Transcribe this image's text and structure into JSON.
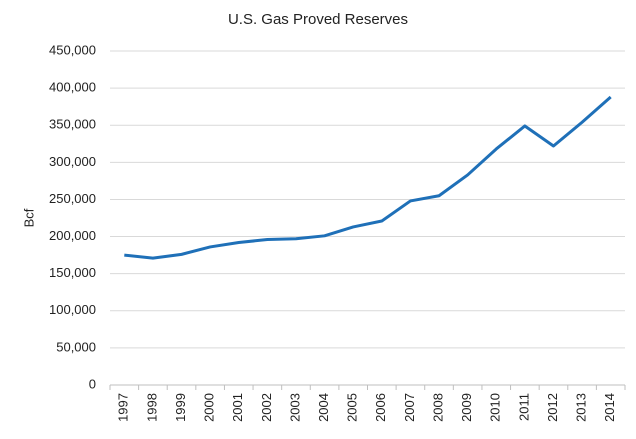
{
  "chart_data": {
    "type": "line",
    "title": "U.S. Gas Proved Reserves",
    "ylabel": "Bcf",
    "categories": [
      "1997",
      "1998",
      "1999",
      "2000",
      "2001",
      "2002",
      "2003",
      "2004",
      "2005",
      "2006",
      "2007",
      "2008",
      "2009",
      "2010",
      "2011",
      "2012",
      "2013",
      "2014"
    ],
    "series": [
      {
        "name": "U.S. Gas Proved Reserves",
        "color": "#1f70b8",
        "values": [
          175000,
          171000,
          176000,
          186000,
          192000,
          196000,
          197000,
          201000,
          213000,
          221000,
          248000,
          255000,
          283000,
          318000,
          349000,
          322000,
          354000,
          388000
        ]
      }
    ],
    "ylim": [
      0,
      450000
    ],
    "yticks": [
      0,
      {
        "value": 50000,
        "label": "50,000"
      },
      {
        "value": 100000,
        "label": "100,000"
      },
      {
        "value": 150000,
        "label": "150,000"
      },
      {
        "value": 200000,
        "label": "200,000"
      },
      {
        "value": 250000,
        "label": "250,000"
      },
      {
        "value": 300000,
        "label": "300,000"
      },
      {
        "value": 350000,
        "label": "350,000"
      },
      {
        "value": 400000,
        "label": "400,000"
      },
      {
        "value": 450000,
        "label": "450,000"
      }
    ],
    "grid": true
  }
}
